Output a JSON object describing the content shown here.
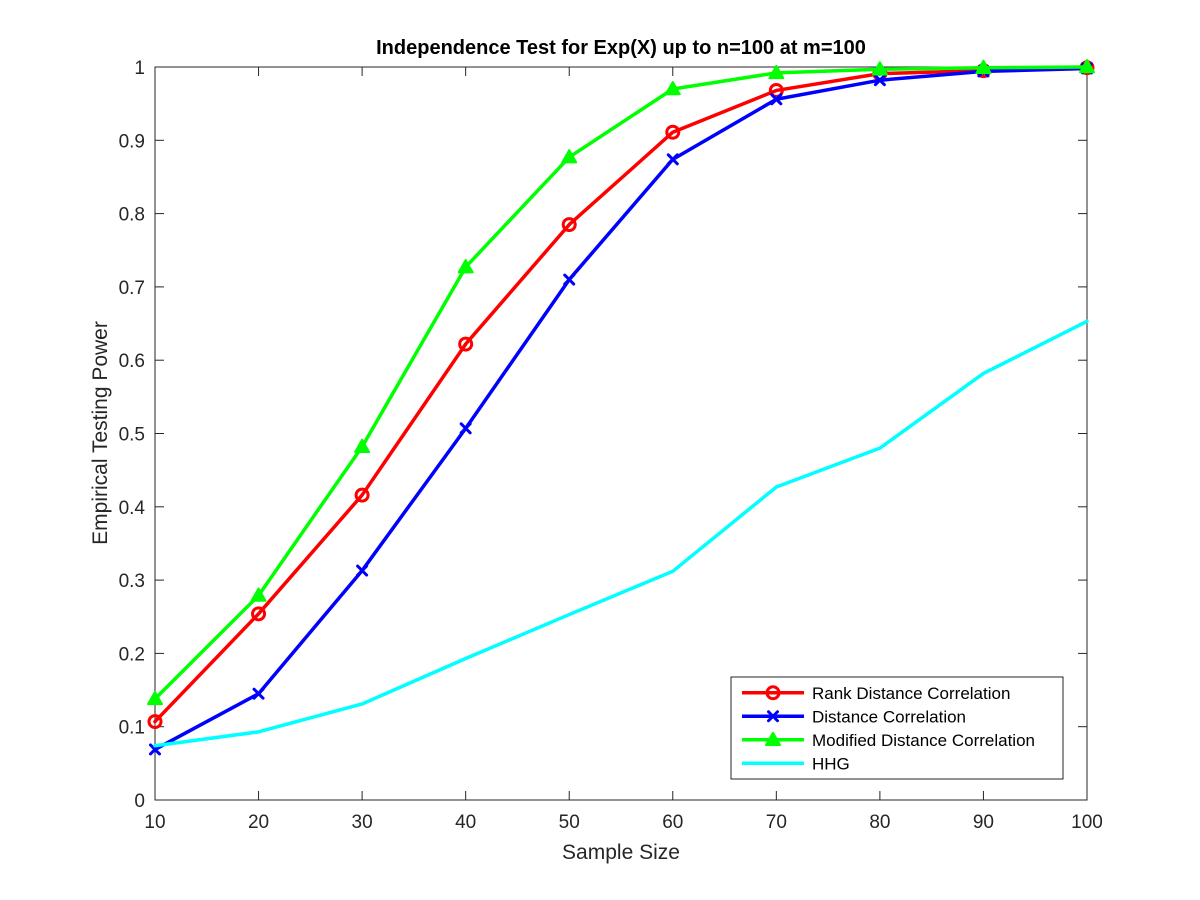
{
  "chart_data": {
    "type": "line",
    "title": "Independence Test for Exp(X) up to n=100 at m=100",
    "xlabel": "Sample Size",
    "ylabel": "Empirical Testing Power",
    "xlim": [
      10,
      100
    ],
    "ylim": [
      0,
      1
    ],
    "xticks": [
      "10",
      "20",
      "30",
      "40",
      "50",
      "60",
      "70",
      "80",
      "90",
      "100"
    ],
    "yticks": [
      "0",
      "0.1",
      "0.2",
      "0.3",
      "0.4",
      "0.5",
      "0.6",
      "0.7",
      "0.8",
      "0.9",
      "1"
    ],
    "grid": false,
    "legend_position": "bottom-right",
    "x": [
      10,
      20,
      30,
      40,
      50,
      60,
      70,
      80,
      90,
      100
    ],
    "series": [
      {
        "name": "Rank Distance Correlation",
        "color": "#ff0000",
        "marker": "circle",
        "values": [
          0.107,
          0.254,
          0.416,
          0.622,
          0.785,
          0.911,
          0.968,
          0.991,
          0.995,
          0.999
        ]
      },
      {
        "name": "Distance Correlation",
        "color": "#0000ff",
        "marker": "x",
        "values": [
          0.069,
          0.145,
          0.313,
          0.507,
          0.71,
          0.874,
          0.956,
          0.982,
          0.994,
          0.998
        ]
      },
      {
        "name": "Modified Distance Correlation",
        "color": "#00ff00",
        "marker": "triangle",
        "values": [
          0.138,
          0.279,
          0.482,
          0.727,
          0.877,
          0.97,
          0.992,
          0.997,
          0.999,
          1.0
        ]
      },
      {
        "name": "HHG",
        "color": "#00ffff",
        "marker": "none",
        "values": [
          0.074,
          0.093,
          0.131,
          0.193,
          0.253,
          0.312,
          0.427,
          0.48,
          0.582,
          0.653
        ]
      }
    ]
  }
}
